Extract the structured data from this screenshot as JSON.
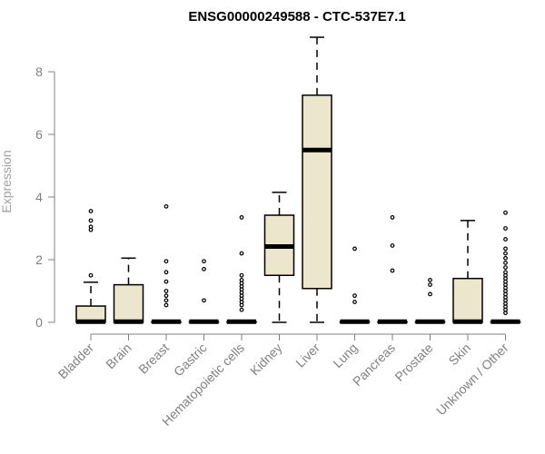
{
  "chart_data": {
    "type": "box",
    "title": "ENSG00000249588 - CTC-537E7.1",
    "ylabel": "Expression",
    "xlabel": "",
    "ylim": [
      0,
      9
    ],
    "yticks": [
      0,
      2,
      4,
      6,
      8
    ],
    "categories": [
      "Bladder",
      "Brain",
      "Breast",
      "Gastric",
      "Hematopoietic cells",
      "Kidney",
      "Liver",
      "Lung",
      "Pancreas",
      "Prostate",
      "Skin",
      "Unknown / Other"
    ],
    "boxes": [
      {
        "name": "Bladder",
        "q1": 0,
        "median": 0.02,
        "q3": 0.52,
        "whisker_low": 0,
        "whisker_high": 1.28,
        "outliers": [
          1.5,
          2.95,
          3.05,
          3.25,
          3.55
        ]
      },
      {
        "name": "Brain",
        "q1": 0,
        "median": 0.02,
        "q3": 1.2,
        "whisker_low": 0,
        "whisker_high": 2.05,
        "outliers": []
      },
      {
        "name": "Breast",
        "q1": 0,
        "median": 0.02,
        "q3": 0.02,
        "whisker_low": 0,
        "whisker_high": 0.02,
        "outliers": [
          0.55,
          0.7,
          0.85,
          1.0,
          1.3,
          1.6,
          1.95,
          3.7
        ]
      },
      {
        "name": "Gastric",
        "q1": 0,
        "median": 0.02,
        "q3": 0.02,
        "whisker_low": 0,
        "whisker_high": 0.02,
        "outliers": [
          0.7,
          1.7,
          1.95
        ]
      },
      {
        "name": "Hematopoietic cells",
        "q1": 0,
        "median": 0.02,
        "q3": 0.02,
        "whisker_low": 0,
        "whisker_high": 0.02,
        "outliers": [
          0.4,
          0.55,
          0.65,
          0.75,
          0.85,
          0.95,
          1.05,
          1.15,
          1.25,
          1.35,
          1.5,
          2.2,
          3.35
        ]
      },
      {
        "name": "Kidney",
        "q1": 1.5,
        "median": 2.42,
        "q3": 3.42,
        "whisker_low": 0,
        "whisker_high": 4.15,
        "outliers": []
      },
      {
        "name": "Liver",
        "q1": 1.08,
        "median": 5.5,
        "q3": 7.25,
        "whisker_low": 0,
        "whisker_high": 9.1,
        "outliers": []
      },
      {
        "name": "Lung",
        "q1": 0,
        "median": 0.02,
        "q3": 0.02,
        "whisker_low": 0,
        "whisker_high": 0.02,
        "outliers": [
          0.65,
          0.85,
          2.35
        ]
      },
      {
        "name": "Pancreas",
        "q1": 0,
        "median": 0.02,
        "q3": 0.02,
        "whisker_low": 0,
        "whisker_high": 0.02,
        "outliers": [
          1.65,
          2.45,
          3.35
        ]
      },
      {
        "name": "Prostate",
        "q1": 0,
        "median": 0.02,
        "q3": 0.02,
        "whisker_low": 0,
        "whisker_high": 0.02,
        "outliers": [
          0.9,
          1.2,
          1.35
        ]
      },
      {
        "name": "Skin",
        "q1": 0,
        "median": 0.02,
        "q3": 1.4,
        "whisker_low": 0,
        "whisker_high": 3.25,
        "outliers": []
      },
      {
        "name": "Unknown / Other",
        "q1": 0,
        "median": 0.02,
        "q3": 0.02,
        "whisker_low": 0,
        "whisker_high": 0.02,
        "outliers": [
          0.3,
          0.4,
          0.5,
          0.6,
          0.7,
          0.8,
          0.9,
          1.0,
          1.1,
          1.2,
          1.3,
          1.4,
          1.5,
          1.6,
          1.75,
          1.9,
          2.05,
          2.2,
          2.35,
          2.65,
          3.0,
          3.5
        ]
      }
    ]
  }
}
